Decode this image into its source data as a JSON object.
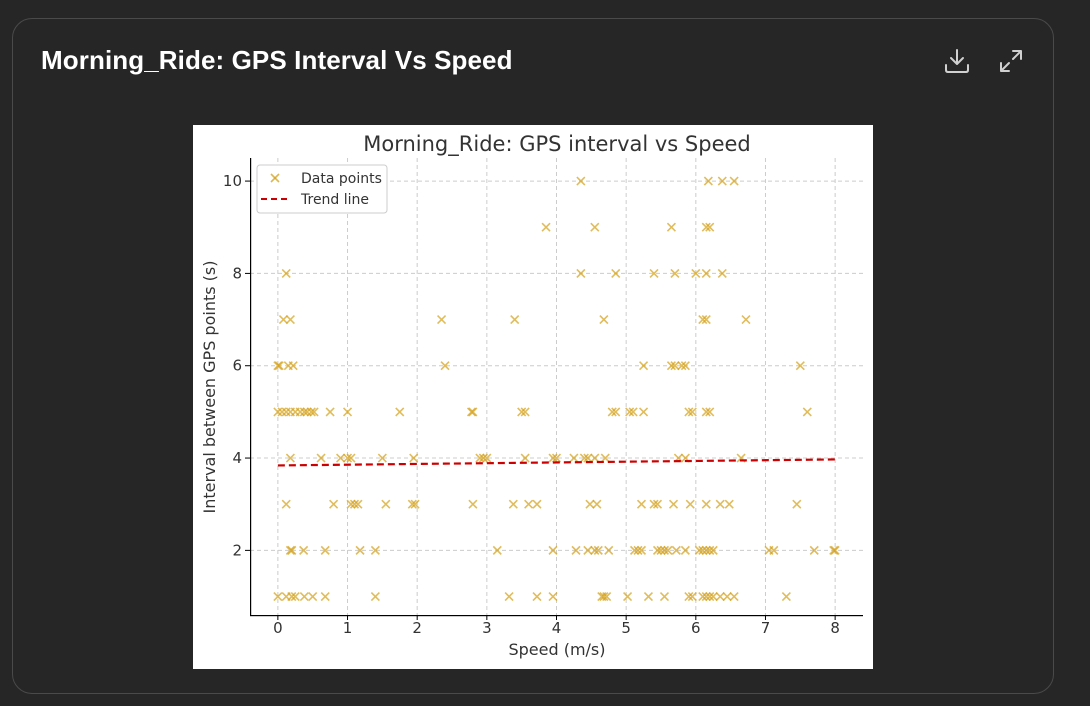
{
  "card": {
    "title": "Morning_Ride: GPS Interval Vs Speed",
    "download_icon": "download-icon",
    "expand_icon": "expand-icon"
  },
  "colors": {
    "background": "#262626",
    "card_border": "#4a4a4a",
    "points": "#d4a017",
    "trend": "#cc0000"
  },
  "chart_data": {
    "type": "scatter",
    "title": "Morning_Ride: GPS interval vs Speed",
    "xlabel": "Speed (m/s)",
    "ylabel": "Interval between GPS points (s)",
    "xlim": [
      -0.4,
      8.4
    ],
    "ylim": [
      0.6,
      10.5
    ],
    "xticks": [
      0,
      1,
      2,
      3,
      4,
      5,
      6,
      7,
      8
    ],
    "yticks": [
      2,
      4,
      6,
      8,
      10
    ],
    "grid": true,
    "legend": {
      "position": "top-left",
      "entries": [
        {
          "label": "Data points",
          "marker": "x"
        },
        {
          "label": "Trend line",
          "marker": "dashed-line"
        }
      ]
    },
    "series": [
      {
        "name": "Data points",
        "marker": "x",
        "points": [
          [
            0.0,
            6
          ],
          [
            0.02,
            6
          ],
          [
            0.0,
            5
          ],
          [
            0.06,
            5
          ],
          [
            0.12,
            5
          ],
          [
            0.18,
            5
          ],
          [
            0.25,
            5
          ],
          [
            0.32,
            5
          ],
          [
            0.38,
            5
          ],
          [
            0.42,
            5
          ],
          [
            0.48,
            5
          ],
          [
            0.52,
            5
          ],
          [
            0.75,
            5
          ],
          [
            1.0,
            5
          ],
          [
            1.75,
            5
          ],
          [
            2.78,
            5
          ],
          [
            2.8,
            5
          ],
          [
            3.5,
            5
          ],
          [
            3.55,
            5
          ],
          [
            4.8,
            5
          ],
          [
            4.85,
            5
          ],
          [
            5.05,
            5
          ],
          [
            5.1,
            5
          ],
          [
            5.25,
            5
          ],
          [
            5.9,
            5
          ],
          [
            5.95,
            5
          ],
          [
            6.15,
            5
          ],
          [
            6.2,
            5
          ],
          [
            7.6,
            5
          ],
          [
            0.15,
            6
          ],
          [
            0.22,
            6
          ],
          [
            2.4,
            6
          ],
          [
            5.25,
            6
          ],
          [
            5.65,
            6
          ],
          [
            5.7,
            6
          ],
          [
            5.8,
            6
          ],
          [
            5.85,
            6
          ],
          [
            7.5,
            6
          ],
          [
            0.08,
            7
          ],
          [
            0.18,
            7
          ],
          [
            2.35,
            7
          ],
          [
            3.4,
            7
          ],
          [
            4.68,
            7
          ],
          [
            6.1,
            7
          ],
          [
            6.15,
            7
          ],
          [
            6.72,
            7
          ],
          [
            0.12,
            8
          ],
          [
            4.35,
            8
          ],
          [
            4.85,
            8
          ],
          [
            5.4,
            8
          ],
          [
            5.7,
            8
          ],
          [
            6.0,
            8
          ],
          [
            6.15,
            8
          ],
          [
            6.38,
            8
          ],
          [
            3.85,
            9
          ],
          [
            4.55,
            9
          ],
          [
            5.65,
            9
          ],
          [
            6.15,
            9
          ],
          [
            6.2,
            9
          ],
          [
            4.35,
            10
          ],
          [
            6.18,
            10
          ],
          [
            6.38,
            10
          ],
          [
            6.55,
            10
          ],
          [
            0.18,
            4
          ],
          [
            0.62,
            4
          ],
          [
            0.9,
            4
          ],
          [
            1.0,
            4
          ],
          [
            1.05,
            4
          ],
          [
            1.5,
            4
          ],
          [
            1.95,
            4
          ],
          [
            2.9,
            4
          ],
          [
            2.95,
            4
          ],
          [
            3.0,
            4
          ],
          [
            3.55,
            4
          ],
          [
            3.95,
            4
          ],
          [
            4.0,
            4
          ],
          [
            4.25,
            4
          ],
          [
            4.4,
            4
          ],
          [
            4.45,
            4
          ],
          [
            4.55,
            4
          ],
          [
            4.7,
            4
          ],
          [
            5.75,
            4
          ],
          [
            5.85,
            4
          ],
          [
            6.65,
            4
          ],
          [
            0.12,
            3
          ],
          [
            0.8,
            3
          ],
          [
            1.05,
            3
          ],
          [
            1.1,
            3
          ],
          [
            1.15,
            3
          ],
          [
            1.55,
            3
          ],
          [
            1.93,
            3
          ],
          [
            1.97,
            3
          ],
          [
            2.8,
            3
          ],
          [
            3.38,
            3
          ],
          [
            3.6,
            3
          ],
          [
            3.72,
            3
          ],
          [
            4.48,
            3
          ],
          [
            4.58,
            3
          ],
          [
            5.22,
            3
          ],
          [
            5.4,
            3
          ],
          [
            5.45,
            3
          ],
          [
            5.68,
            3
          ],
          [
            5.92,
            3
          ],
          [
            6.15,
            3
          ],
          [
            6.35,
            3
          ],
          [
            6.48,
            3
          ],
          [
            7.45,
            3
          ],
          [
            0.18,
            2
          ],
          [
            0.2,
            2
          ],
          [
            0.37,
            2
          ],
          [
            0.68,
            2
          ],
          [
            1.18,
            2
          ],
          [
            1.4,
            2
          ],
          [
            3.15,
            2
          ],
          [
            3.95,
            2
          ],
          [
            4.28,
            2
          ],
          [
            4.45,
            2
          ],
          [
            4.55,
            2
          ],
          [
            4.6,
            2
          ],
          [
            4.75,
            2
          ],
          [
            5.12,
            2
          ],
          [
            5.17,
            2
          ],
          [
            5.22,
            2
          ],
          [
            5.45,
            2
          ],
          [
            5.5,
            2
          ],
          [
            5.55,
            2
          ],
          [
            5.6,
            2
          ],
          [
            5.72,
            2
          ],
          [
            5.85,
            2
          ],
          [
            6.05,
            2
          ],
          [
            6.1,
            2
          ],
          [
            6.15,
            2
          ],
          [
            6.2,
            2
          ],
          [
            6.25,
            2
          ],
          [
            7.05,
            2
          ],
          [
            7.12,
            2
          ],
          [
            7.7,
            2
          ],
          [
            7.98,
            2
          ],
          [
            8.0,
            2
          ],
          [
            0.0,
            1
          ],
          [
            0.12,
            1
          ],
          [
            0.2,
            1
          ],
          [
            0.25,
            1
          ],
          [
            0.38,
            1
          ],
          [
            0.5,
            1
          ],
          [
            0.68,
            1
          ],
          [
            1.4,
            1
          ],
          [
            3.32,
            1
          ],
          [
            3.72,
            1
          ],
          [
            3.95,
            1
          ],
          [
            4.65,
            1
          ],
          [
            4.68,
            1
          ],
          [
            4.72,
            1
          ],
          [
            5.02,
            1
          ],
          [
            5.32,
            1
          ],
          [
            5.55,
            1
          ],
          [
            5.9,
            1
          ],
          [
            5.95,
            1
          ],
          [
            6.1,
            1
          ],
          [
            6.15,
            1
          ],
          [
            6.2,
            1
          ],
          [
            6.25,
            1
          ],
          [
            6.35,
            1
          ],
          [
            6.45,
            1
          ],
          [
            6.55,
            1
          ],
          [
            7.3,
            1
          ]
        ]
      },
      {
        "name": "Trend line",
        "style": "dashed",
        "x": [
          0,
          8
        ],
        "y": [
          3.84,
          3.97
        ]
      }
    ]
  }
}
